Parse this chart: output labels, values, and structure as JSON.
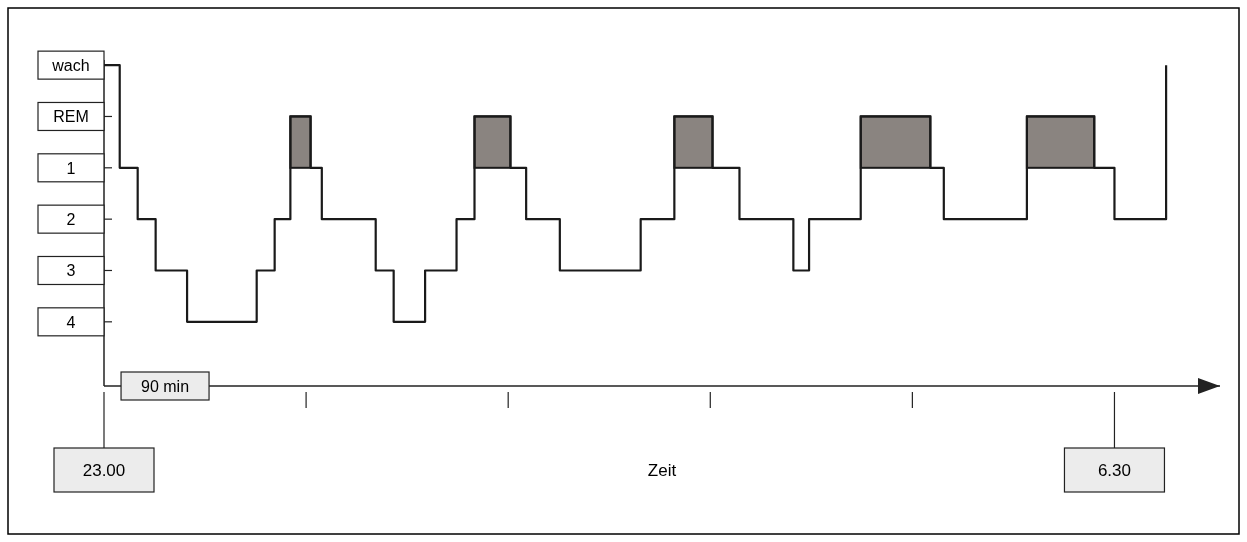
{
  "chart_data": {
    "type": "step",
    "xlabel": "Zeit",
    "x": [
      "2000-01-01T23:00",
      "2000-01-01T23:07",
      "2000-01-01T23:15",
      "2000-01-01T23:23",
      "2000-01-01T23:37",
      "2000-01-02T00:08",
      "2000-01-02T00:16",
      "2000-01-02T00:23",
      "2000-01-02T00:32",
      "2000-01-02T00:37",
      "2000-01-02T01:01",
      "2000-01-02T01:09",
      "2000-01-02T01:23",
      "2000-01-02T01:37",
      "2000-01-02T01:45",
      "2000-01-02T02:01",
      "2000-01-02T02:08",
      "2000-01-02T02:23",
      "2000-01-02T02:59",
      "2000-01-02T03:14",
      "2000-01-02T03:31",
      "2000-01-02T03:43",
      "2000-01-02T04:07",
      "2000-01-02T04:14",
      "2000-01-02T04:37",
      "2000-01-02T05:08",
      "2000-01-02T05:14",
      "2000-01-02T05:51",
      "2000-01-02T06:21",
      "2000-01-02T06:30",
      "2000-01-02T06:53"
    ],
    "series": [
      {
        "color": "#1a1a1a",
        "values": [
          -1,
          1,
          2,
          3,
          4,
          3,
          2,
          0,
          1,
          2,
          3,
          4,
          3,
          2,
          0,
          1,
          2,
          3,
          2,
          0,
          1,
          2,
          3,
          2,
          0,
          1,
          2,
          0,
          1,
          2,
          -1
        ]
      }
    ],
    "xlim": [
      "2000-01-01T23:00",
      "2000-01-02T07:17"
    ],
    "ylim": [
      5.25,
      -1.1
    ],
    "xticks": [
      {
        "value": "2000-01-01T23:00",
        "label": "23.00"
      },
      {
        "value": "2000-01-02T00:30",
        "label": null
      },
      {
        "value": "2000-01-02T02:00",
        "label": null
      },
      {
        "value": "2000-01-02T03:30",
        "label": null
      },
      {
        "value": "2000-01-02T05:00",
        "label": null
      },
      {
        "value": "2000-01-02T06:30",
        "label": "6.30"
      }
    ],
    "yticks": [
      {
        "value": -1,
        "label": "wach"
      },
      {
        "value": 0,
        "label": "REM"
      },
      1,
      2,
      3,
      4
    ],
    "bands": [
      {
        "axis": "x",
        "from": "2000-01-02T00:23",
        "to": "2000-01-02T00:32",
        "color": "#8a8480"
      },
      {
        "axis": "x",
        "from": "2000-01-02T01:45",
        "to": "2000-01-02T02:01",
        "color": "#8a8480"
      },
      {
        "axis": "x",
        "from": "2000-01-02T03:14",
        "to": "2000-01-02T03:31",
        "color": "#8a8480"
      },
      {
        "axis": "x",
        "from": "2000-01-02T04:37",
        "to": "2000-01-02T05:08",
        "color": "#8a8480"
      },
      {
        "axis": "x",
        "from": "2000-01-02T05:51",
        "to": "2000-01-02T06:21",
        "color": "#8a8480"
      }
    ],
    "annotations": [
      "90 min"
    ]
  }
}
